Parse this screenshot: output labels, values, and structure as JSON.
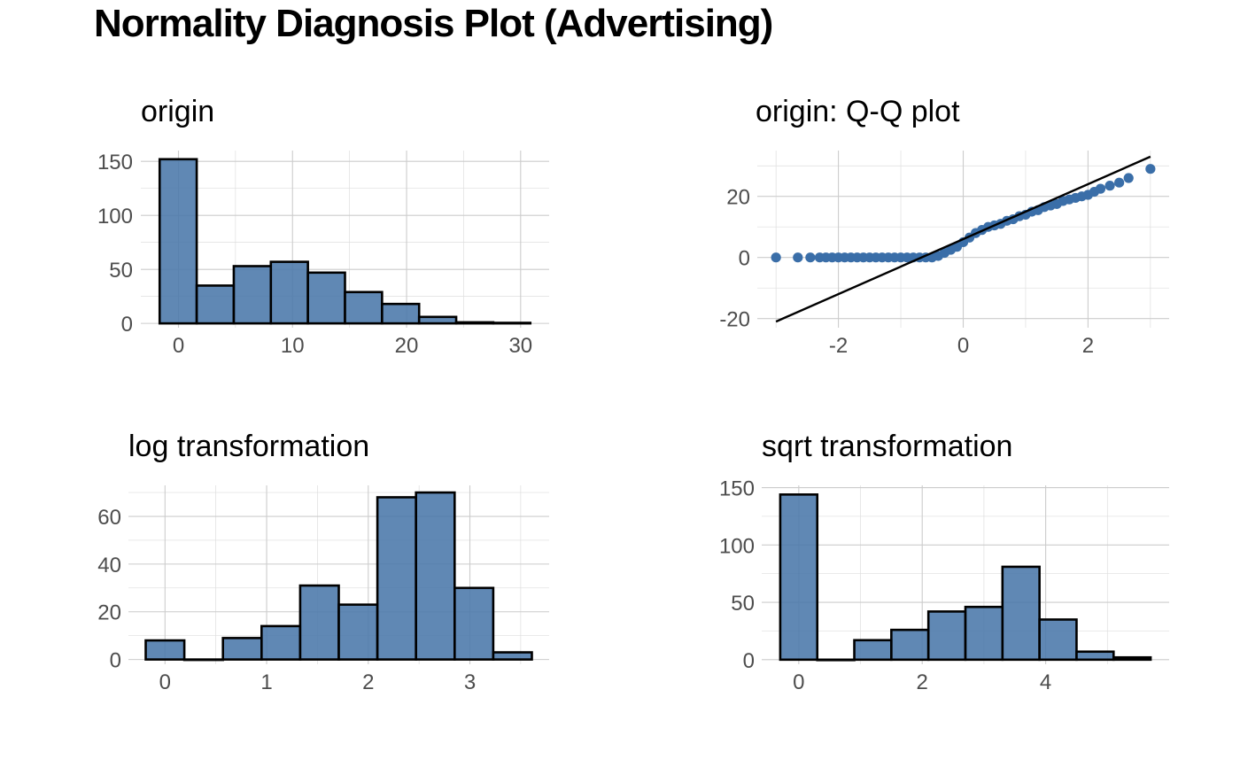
{
  "title": "Normality Diagnosis Plot (Advertising)",
  "colors": {
    "fill": "#4a78aa",
    "point": "#3a6ea8",
    "outline": "#000000",
    "grid": "#cccccc",
    "tick_text": "#4d4d4d"
  },
  "chart_data": [
    {
      "type": "bar",
      "title": "origin",
      "bin_edges": [
        -1.65,
        1.6,
        4.85,
        8.1,
        11.35,
        14.6,
        17.85,
        21.1,
        24.35,
        27.6,
        30.85
      ],
      "values": [
        152,
        35,
        53,
        57,
        47,
        29,
        18,
        6,
        1,
        0.5
      ],
      "xlim": [
        -3.3,
        32.5
      ],
      "ylim": [
        -4,
        160
      ],
      "x_ticks": [
        0,
        10,
        20,
        30
      ],
      "x_tick_labels": [
        "0",
        "10",
        "20",
        "30"
      ],
      "y_ticks": [
        0,
        50,
        100,
        150
      ],
      "y_tick_labels": [
        "0",
        "50",
        "100",
        "150"
      ],
      "grid": true
    },
    {
      "type": "scatter",
      "title": "origin: Q-Q plot",
      "xlim": [
        -3.3,
        3.3
      ],
      "ylim": [
        -23,
        35
      ],
      "x_ticks": [
        -2,
        0,
        2
      ],
      "x_tick_labels": [
        "-2",
        "0",
        "2"
      ],
      "y_ticks": [
        -20,
        0,
        20
      ],
      "y_tick_labels": [
        "-20",
        "0",
        "20"
      ],
      "reference_line": {
        "x": [
          -3,
          3
        ],
        "y": [
          -21,
          33
        ]
      },
      "points": [
        [
          -3.0,
          0
        ],
        [
          -2.65,
          0
        ],
        [
          -2.45,
          0
        ],
        [
          -2.3,
          0
        ],
        [
          -2.2,
          0
        ],
        [
          -2.1,
          0
        ],
        [
          -2.0,
          0
        ],
        [
          -1.9,
          0
        ],
        [
          -1.8,
          0
        ],
        [
          -1.7,
          0
        ],
        [
          -1.6,
          0
        ],
        [
          -1.5,
          0
        ],
        [
          -1.4,
          0
        ],
        [
          -1.3,
          0
        ],
        [
          -1.2,
          0
        ],
        [
          -1.1,
          0
        ],
        [
          -1.0,
          0
        ],
        [
          -0.9,
          0
        ],
        [
          -0.8,
          0
        ],
        [
          -0.7,
          0
        ],
        [
          -0.6,
          0
        ],
        [
          -0.5,
          0
        ],
        [
          -0.4,
          0.5
        ],
        [
          -0.3,
          1.5
        ],
        [
          -0.2,
          2.5
        ],
        [
          -0.1,
          3.5
        ],
        [
          0.0,
          5
        ],
        [
          0.1,
          6.5
        ],
        [
          0.2,
          8
        ],
        [
          0.3,
          9
        ],
        [
          0.4,
          10
        ],
        [
          0.5,
          10.5
        ],
        [
          0.6,
          11
        ],
        [
          0.7,
          12
        ],
        [
          0.8,
          12.5
        ],
        [
          0.9,
          13.5
        ],
        [
          1.0,
          14
        ],
        [
          1.1,
          15
        ],
        [
          1.2,
          15.5
        ],
        [
          1.3,
          16.5
        ],
        [
          1.4,
          17
        ],
        [
          1.5,
          17.5
        ],
        [
          1.6,
          18.5
        ],
        [
          1.7,
          19
        ],
        [
          1.8,
          19.5
        ],
        [
          1.9,
          20
        ],
        [
          2.0,
          20.5
        ],
        [
          2.1,
          21.5
        ],
        [
          2.2,
          22.5
        ],
        [
          2.35,
          23.5
        ],
        [
          2.5,
          24.5
        ],
        [
          2.65,
          26
        ],
        [
          3.0,
          29
        ]
      ],
      "grid": true
    },
    {
      "type": "bar",
      "title": "log transformation",
      "bin_edges": [
        -0.19,
        0.19,
        0.57,
        0.95,
        1.33,
        1.71,
        2.09,
        2.47,
        2.85,
        3.23,
        3.61
      ],
      "values": [
        8,
        0,
        9,
        14,
        31,
        23,
        68,
        70,
        30,
        3
      ],
      "xlim": [
        -0.36,
        3.78
      ],
      "ylim": [
        -2,
        73
      ],
      "x_ticks": [
        0,
        1,
        2,
        3
      ],
      "x_tick_labels": [
        "0",
        "1",
        "2",
        "3"
      ],
      "y_ticks": [
        0,
        20,
        40,
        60
      ],
      "y_tick_labels": [
        "0",
        "20",
        "40",
        "60"
      ],
      "grid": true
    },
    {
      "type": "bar",
      "title": "sqrt transformation",
      "bin_edges": [
        -0.3,
        0.3,
        0.9,
        1.5,
        2.1,
        2.7,
        3.3,
        3.9,
        4.5,
        5.1,
        5.7
      ],
      "values": [
        144,
        0,
        17,
        26,
        42,
        46,
        81,
        35,
        7,
        2
      ],
      "xlim": [
        -0.6,
        6.0
      ],
      "ylim": [
        -4,
        152
      ],
      "x_ticks": [
        0,
        2,
        4
      ],
      "x_tick_labels": [
        "0",
        "2",
        "4"
      ],
      "y_ticks": [
        0,
        50,
        100,
        150
      ],
      "y_tick_labels": [
        "0",
        "50",
        "100",
        "150"
      ],
      "grid": true
    }
  ]
}
